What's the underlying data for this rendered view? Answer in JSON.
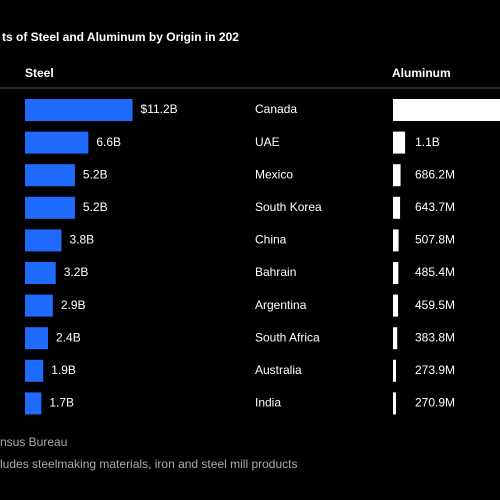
{
  "chart_data": {
    "type": "bar",
    "title": "ts of Steel and Aluminum by Origin in 202",
    "categories": [
      "Canada",
      "UAE",
      "Mexico",
      "South Korea",
      "China",
      "Bahrain",
      "Argentina",
      "South Africa",
      "Australia",
      "India"
    ],
    "series": [
      {
        "name": "Steel",
        "color": "#1f6bff",
        "values": [
          11.2,
          6.6,
          5.2,
          5.2,
          3.8,
          3.2,
          2.9,
          2.4,
          1.9,
          1.7
        ],
        "value_labels": [
          "$11.2B",
          "6.6B",
          "5.2B",
          "5.2B",
          "3.8B",
          "3.2B",
          "2.9B",
          "2.4B",
          "1.9B",
          "1.7B"
        ]
      },
      {
        "name": "Aluminum",
        "color": "#ffffff",
        "values": [
          10,
          1.1,
          0.6862,
          0.6437,
          0.5078,
          0.4854,
          0.4595,
          0.3838,
          0.2739,
          0.2709
        ],
        "value_labels": [
          null,
          "1.1B",
          "686.2M",
          "643.7M",
          "507.8M",
          "485.4M",
          "459.5M",
          "383.8M",
          "273.9M",
          "270.9M"
        ]
      }
    ],
    "source": "nsus Bureau",
    "note": "ludes steelmaking materials, iron and steel mill products"
  }
}
